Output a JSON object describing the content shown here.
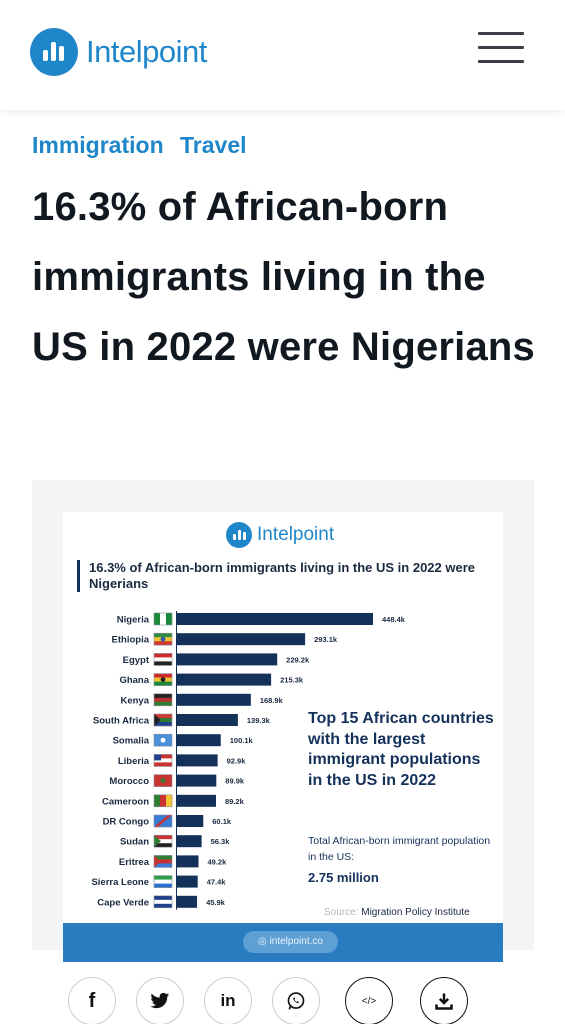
{
  "header": {
    "brand": "Intelpoint",
    "menu_icon": "hamburger-menu-icon",
    "brand_color": "#1f87c9"
  },
  "article": {
    "tags": [
      "Immigration",
      "Travel"
    ],
    "title": "16.3% of African-born immigrants living in the US in 2022 were Nigerians"
  },
  "infographic": {
    "brand": "Intelpoint",
    "heading": "16.3% of African-born immigrants living in the US in 2022 were Nigerians",
    "side_title": "Top 15 African countries with the largest immigrant populations in the US in 2022",
    "total_label": "Total African-born immigrant population in the US:",
    "total_value": "2.75 million",
    "source_label": "Source:",
    "source_value": "Migration Policy Institute",
    "footer_link": "intelpoint.co",
    "bar_color": "#14315a"
  },
  "chart_data": {
    "type": "bar",
    "orientation": "horizontal",
    "categories": [
      "Nigeria",
      "Ethiopia",
      "Egypt",
      "Ghana",
      "Kenya",
      "South Africa",
      "Somalia",
      "Liberia",
      "Morocco",
      "Cameroon",
      "DR Congo",
      "Sudan",
      "Eritrea",
      "Sierra Leone",
      "Cape Verde"
    ],
    "values": [
      448.4,
      293.1,
      229.2,
      215.3,
      168.9,
      139.3,
      100.1,
      92.9,
      89.9,
      89.2,
      60.1,
      56.3,
      49.2,
      47.4,
      45.9
    ],
    "value_labels": [
      "448.4k",
      "293.1k",
      "229.2k",
      "215.3k",
      "168.9k",
      "139.3k",
      "100.1k",
      "92.9k",
      "89.9k",
      "89.2k",
      "60.1k",
      "56.3k",
      "49.2k",
      "47.4k",
      "45.9k"
    ],
    "units": "thousands",
    "xlim": [
      0,
      448.4
    ],
    "grid": false,
    "legend": "none"
  },
  "share": {
    "buttons": [
      {
        "name": "facebook",
        "glyph": "f"
      },
      {
        "name": "twitter",
        "glyph": ""
      },
      {
        "name": "linkedin",
        "glyph": "in"
      },
      {
        "name": "whatsapp",
        "glyph": ""
      },
      {
        "name": "embed",
        "glyph": "</>"
      },
      {
        "name": "download",
        "glyph": ""
      }
    ]
  }
}
